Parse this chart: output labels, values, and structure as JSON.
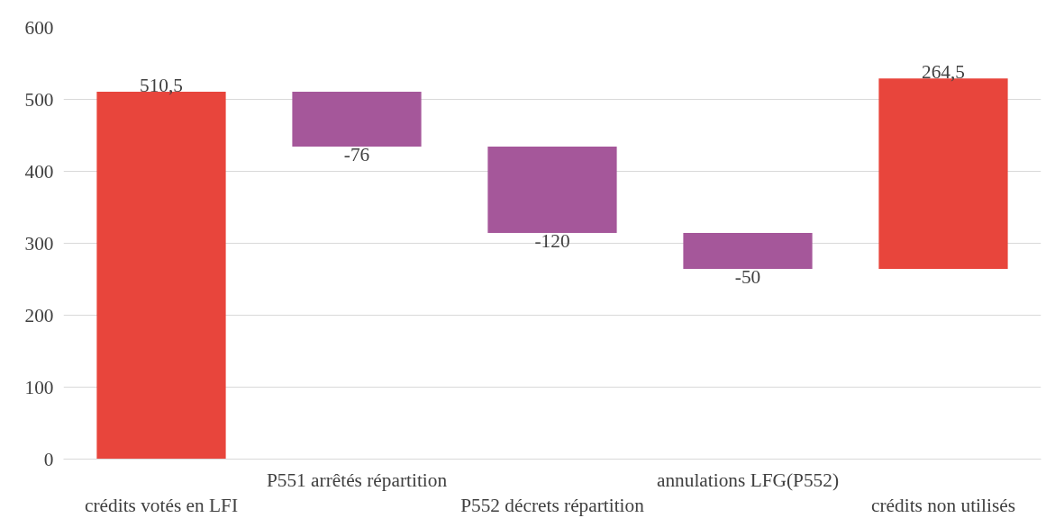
{
  "chart_data": {
    "type": "bar",
    "categories": [
      "crédits votés en LFI",
      "P551 arrêtés répartition",
      "P552 décrets répartition",
      "annulations LFG(P552)",
      "crédits non utilisés"
    ],
    "values": [
      510.5,
      -76,
      -120,
      -50,
      264.5
    ],
    "base": [
      0,
      510.5,
      434.5,
      314.5,
      264.5
    ],
    "colors": [
      "#e8453c",
      "#a5579a",
      "#a5579a",
      "#a5579a",
      "#e8453c"
    ],
    "value_labels": [
      "510,5",
      "-76",
      "-120",
      "-50",
      "264,5"
    ],
    "ylim": [
      0,
      600
    ],
    "yticks": [
      0,
      100,
      200,
      300,
      400,
      500,
      600
    ],
    "grid": "y"
  }
}
